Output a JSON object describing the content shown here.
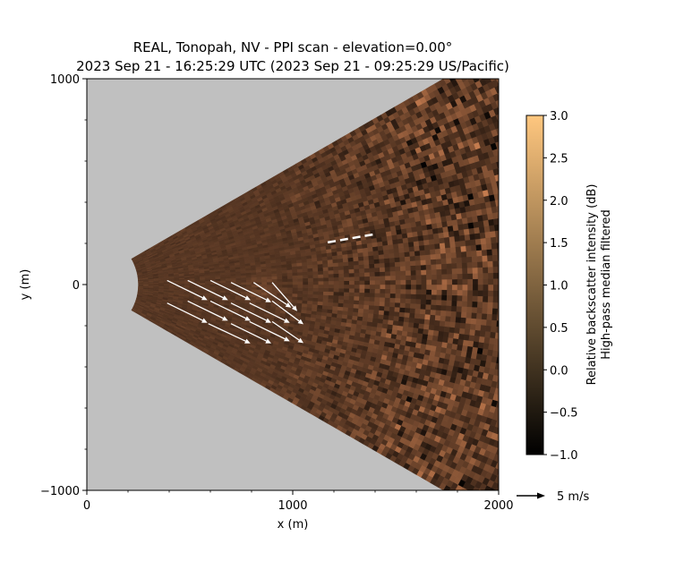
{
  "chart_data": {
    "type": "heatmap",
    "title": "REAL, Tonopah, NV - PPI scan - elevation=0.00°",
    "subtitle": "2023 Sep 21 - 16:25:29 UTC (2023 Sep 21 - 09:25:29 US/Pacific)",
    "xlabel": "x (m)",
    "ylabel": "y (m)",
    "xlim": [
      0,
      2000
    ],
    "ylim": [
      -1000,
      1000
    ],
    "x_ticks": [
      0,
      1000,
      2000
    ],
    "x_tick_labels": [
      "0",
      "1000",
      "2000"
    ],
    "y_ticks": [
      -1000,
      0,
      1000
    ],
    "y_tick_labels": [
      "−1000",
      "0",
      "1000"
    ],
    "scan_sector": {
      "min_range_m": 250,
      "half_angle_deg": 30,
      "background_color": "#c0c0c0"
    },
    "colorbar": {
      "label_line1": "Relative backscatter intensity (dB)",
      "label_line2": "High-pass median filtered",
      "range": [
        -1.0,
        3.0
      ],
      "ticks": [
        -1.0,
        -0.5,
        0.0,
        0.5,
        1.0,
        1.5,
        2.0,
        2.5,
        3.0
      ],
      "tick_labels": [
        "−1.0",
        "−0.5",
        "0.0",
        "0.5",
        "1.0",
        "1.5",
        "2.0",
        "2.5",
        "3.0"
      ],
      "colormap": "copper",
      "color_low": "#000000",
      "color_high": "#ffc77f"
    },
    "vectors": [
      {
        "x": 390,
        "y": 20,
        "u": 4.5,
        "v": -2.2
      },
      {
        "x": 490,
        "y": 20,
        "u": 4.5,
        "v": -2.2
      },
      {
        "x": 600,
        "y": 20,
        "u": 4.5,
        "v": -2.2
      },
      {
        "x": 700,
        "y": 10,
        "u": 4.5,
        "v": -2.2
      },
      {
        "x": 810,
        "y": 10,
        "u": 4.2,
        "v": -2.8
      },
      {
        "x": 900,
        "y": 10,
        "u": 2.8,
        "v": -3.2
      },
      {
        "x": 390,
        "y": -90,
        "u": 4.5,
        "v": -2.2
      },
      {
        "x": 490,
        "y": -80,
        "u": 4.5,
        "v": -2.2
      },
      {
        "x": 600,
        "y": -80,
        "u": 4.5,
        "v": -2.2
      },
      {
        "x": 700,
        "y": -90,
        "u": 4.5,
        "v": -2.2
      },
      {
        "x": 790,
        "y": -90,
        "u": 4.5,
        "v": -2.2
      },
      {
        "x": 900,
        "y": -80,
        "u": 3.5,
        "v": -2.6
      },
      {
        "x": 590,
        "y": -190,
        "u": 4.7,
        "v": -2.2
      },
      {
        "x": 700,
        "y": -190,
        "u": 4.5,
        "v": -2.2
      },
      {
        "x": 790,
        "y": -180,
        "u": 4.5,
        "v": -2.2
      },
      {
        "x": 900,
        "y": -180,
        "u": 3.5,
        "v": -2.4
      }
    ],
    "reference_line": {
      "x": [
        1170,
        1400
      ],
      "y": [
        205,
        245
      ],
      "style": "dashed",
      "color": "#ffffff"
    },
    "key": {
      "label": "5 m/s",
      "magnitude": 5
    }
  }
}
